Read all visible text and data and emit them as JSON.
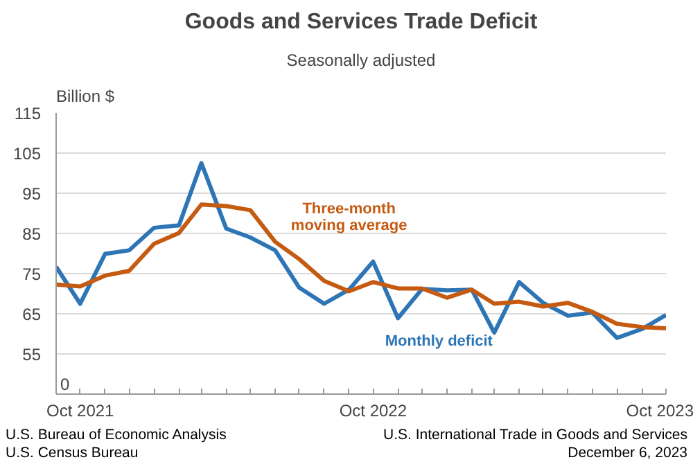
{
  "chart_data": {
    "type": "line",
    "title": "Goods and Services Trade Deficit",
    "subtitle": "Seasonally adjusted",
    "ylabel": "Billion $",
    "x": [
      "2021-09",
      "2021-10",
      "2021-11",
      "2021-12",
      "2022-01",
      "2022-02",
      "2022-03",
      "2022-04",
      "2022-05",
      "2022-06",
      "2022-07",
      "2022-08",
      "2022-09",
      "2022-10",
      "2022-11",
      "2022-12",
      "2023-01",
      "2023-02",
      "2023-03",
      "2023-04",
      "2023-05",
      "2023-06",
      "2023-07",
      "2023-08",
      "2023-09",
      "2023-10"
    ],
    "series": [
      {
        "name": "Monthly deficit",
        "color": "#2e75b6",
        "values": [
          76.7,
          67.5,
          79.9,
          80.8,
          86.4,
          87.0,
          102.5,
          86.2,
          84.0,
          80.8,
          71.5,
          67.5,
          71.0,
          78.0,
          63.9,
          71.2,
          70.8,
          71.0,
          60.3,
          72.9,
          67.7,
          64.5,
          65.3,
          59.0,
          61.2,
          64.7
        ]
      },
      {
        "name": "Three-month moving average",
        "color": "#c55a11",
        "values": [
          72.3,
          71.8,
          74.5,
          75.7,
          82.4,
          85.1,
          92.2,
          91.8,
          90.8,
          82.9,
          78.6,
          73.2,
          70.6,
          72.9,
          71.3,
          71.3,
          69.0,
          71.0,
          67.5,
          68.0,
          66.8,
          67.7,
          65.5,
          62.5,
          61.7,
          61.4
        ]
      }
    ],
    "xlim": [
      "2021-09",
      "2023-10"
    ],
    "xticks": [
      {
        "value": "2021-09",
        "label": null
      },
      {
        "value": "2021-10",
        "label": "Oct 2021"
      },
      {
        "value": "2021-11",
        "label": null
      },
      {
        "value": "2021-12",
        "label": null
      },
      {
        "value": "2022-01",
        "label": null
      },
      {
        "value": "2022-02",
        "label": null
      },
      {
        "value": "2022-03",
        "label": null
      },
      {
        "value": "2022-04",
        "label": null
      },
      {
        "value": "2022-05",
        "label": null
      },
      {
        "value": "2022-06",
        "label": null
      },
      {
        "value": "2022-07",
        "label": null
      },
      {
        "value": "2022-08",
        "label": null
      },
      {
        "value": "2022-09",
        "label": null
      },
      {
        "value": "2022-10",
        "label": "Oct 2022"
      },
      {
        "value": "2022-11",
        "label": null
      },
      {
        "value": "2022-12",
        "label": null
      },
      {
        "value": "2023-01",
        "label": null
      },
      {
        "value": "2023-02",
        "label": null
      },
      {
        "value": "2023-03",
        "label": null
      },
      {
        "value": "2023-04",
        "label": null
      },
      {
        "value": "2023-05",
        "label": null
      },
      {
        "value": "2023-06",
        "label": null
      },
      {
        "value": "2023-07",
        "label": null
      },
      {
        "value": "2023-08",
        "label": null
      },
      {
        "value": "2023-09",
        "label": null
      },
      {
        "value": "2023-10",
        "label": "Oct 2023"
      }
    ],
    "ylim": [
      45,
      115
    ],
    "yticks": [
      55,
      65,
      75,
      85,
      95,
      105,
      115
    ],
    "grid": "y",
    "legend": false,
    "marker": "none",
    "line_style": "solid",
    "annotations": [
      "U.S. Bureau of Economic Analysis",
      "U.S. Census Bureau",
      "U.S. International Trade in Goods and Services",
      "December 6, 2023",
      "0"
    ]
  }
}
